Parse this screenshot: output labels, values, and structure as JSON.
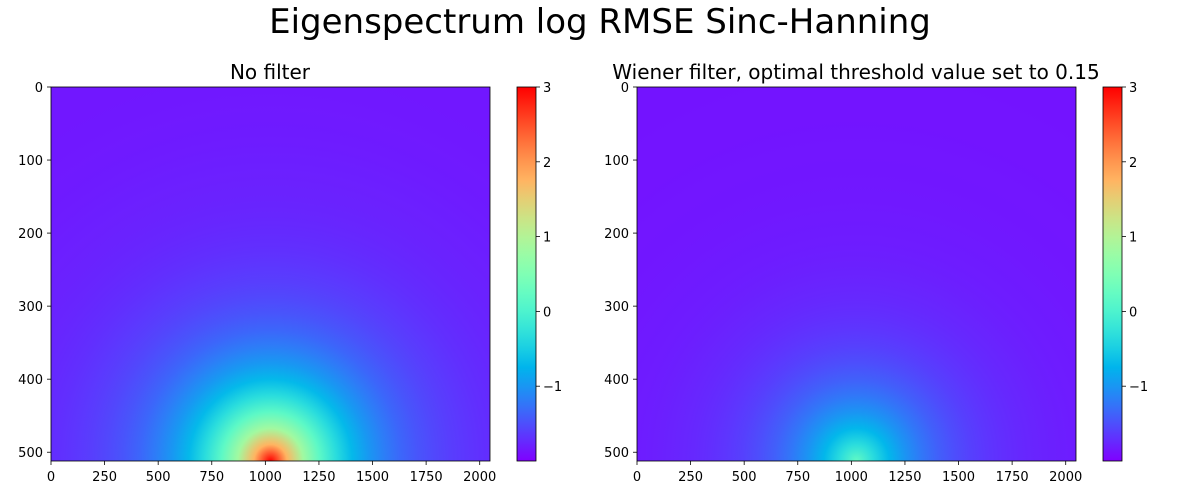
{
  "suptitle": "Eigenspectrum log RMSE Sinc-Hanning",
  "colormap": "rainbow",
  "chart_data": [
    {
      "type": "heatmap",
      "title": "No filter",
      "xlabel": "",
      "ylabel": "",
      "xlim": [
        0,
        2048
      ],
      "ylim": [
        512,
        0
      ],
      "xticks": [
        0,
        250,
        500,
        750,
        1000,
        1250,
        1500,
        1750,
        2000
      ],
      "yticks": [
        0,
        100,
        200,
        300,
        400,
        500
      ],
      "value_range": [
        -2,
        3
      ],
      "colorbar_ticks": [
        3,
        2,
        1,
        0,
        -1
      ],
      "colorbar_tick_labels": [
        "3",
        "2",
        "1",
        "0",
        "−1"
      ],
      "background_value": -1.9,
      "peak": {
        "x": 1024,
        "y": 512,
        "value": 3
      },
      "colorbar": true
    },
    {
      "type": "heatmap",
      "title": "Wiener filter, optimal threshold value set to 0.15",
      "xlabel": "",
      "ylabel": "",
      "xlim": [
        0,
        2048
      ],
      "ylim": [
        512,
        0
      ],
      "xticks": [
        0,
        250,
        500,
        750,
        1000,
        1250,
        1500,
        1750,
        2000
      ],
      "yticks": [
        0,
        100,
        200,
        300,
        400,
        500
      ],
      "value_range": [
        -2,
        3
      ],
      "colorbar_ticks": [
        3,
        2,
        1,
        0,
        -1
      ],
      "colorbar_tick_labels": [
        "3",
        "2",
        "1",
        "0",
        "−1"
      ],
      "background_value": -1.9,
      "peak": {
        "x": 1024,
        "y": 512,
        "value": 0.2
      },
      "colorbar": true
    }
  ]
}
